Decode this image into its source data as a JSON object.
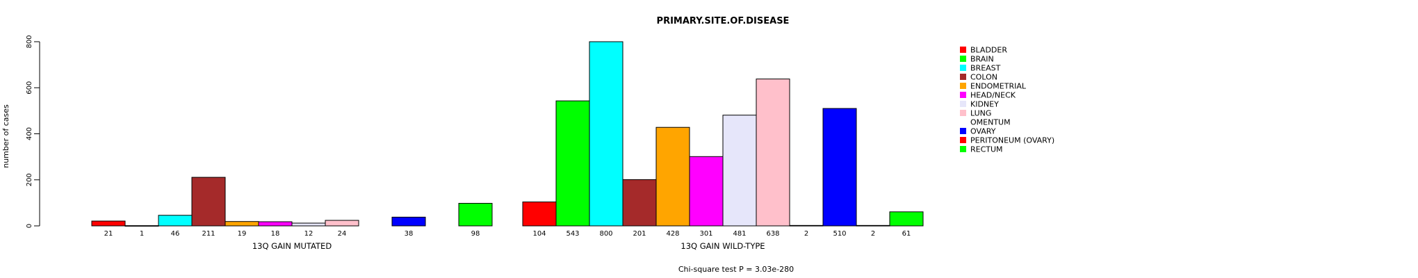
{
  "chart_data": {
    "type": "bar",
    "title": "PRIMARY.SITE.OF.DISEASE",
    "ylabel": "number of cases",
    "ylim": [
      0,
      800
    ],
    "yticks": [
      0,
      200,
      400,
      600,
      800
    ],
    "categories": [
      "BLADDER",
      "BRAIN",
      "BREAST",
      "COLON",
      "ENDOMETRIAL",
      "HEAD/NECK",
      "KIDNEY",
      "LUNG",
      "OMENTUM",
      "OVARY",
      "PERITONEUM (OVARY)",
      "RECTUM"
    ],
    "colors": [
      "#ff0000",
      "#00ff00",
      "#00ffff",
      "#a52a2a",
      "#ffa500",
      "#ff00ff",
      "#e6e6fa",
      "#ffc0cb",
      "#ffffff",
      "#0000ff",
      "#ff0000",
      "#00ff00"
    ],
    "series": [
      {
        "name": "13Q GAIN MUTATED",
        "values": [
          21,
          1,
          46,
          211,
          19,
          18,
          12,
          24,
          0,
          38,
          0,
          98
        ]
      },
      {
        "name": "13Q GAIN WILD-TYPE",
        "values": [
          104,
          543,
          800,
          201,
          428,
          301,
          481,
          638,
          2,
          510,
          2,
          61
        ]
      }
    ],
    "count_labels": [
      [
        "21",
        "1",
        "46",
        "211",
        "19",
        "18",
        "12",
        "24",
        "",
        "38",
        "",
        "98"
      ],
      [
        "104",
        "543",
        "800",
        "201",
        "428",
        "301",
        "481",
        "638",
        "2",
        "510",
        "2",
        "61"
      ]
    ],
    "legend_position": "right",
    "footnote": "Chi-square test P = 3.03e-280"
  }
}
